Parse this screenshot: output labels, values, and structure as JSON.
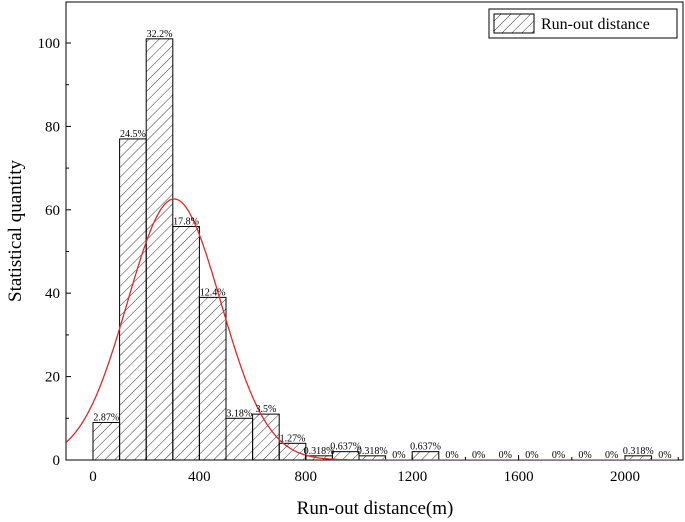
{
  "chart_data": {
    "type": "bar",
    "title": "",
    "xlabel": "Run-out distance(m)",
    "ylabel": "Statistical quantity",
    "xlim": [
      -100,
      2200
    ],
    "ylim": [
      0,
      110
    ],
    "bin_width": 100,
    "x_ticks": [
      0,
      400,
      800,
      1200,
      1600,
      2000
    ],
    "x_tick_labels": [
      "0",
      "400",
      "800",
      "1200",
      "1600",
      "2000"
    ],
    "y_ticks": [
      0,
      20,
      40,
      60,
      80,
      100
    ],
    "y_tick_labels": [
      "0",
      "20",
      "40",
      "60",
      "80",
      "100"
    ],
    "grid": false,
    "legend_position": "top-right",
    "legend_label": "Run-out distance",
    "series": [
      {
        "name": "Run-out distance",
        "bin_starts": [
          0,
          100,
          200,
          300,
          400,
          500,
          600,
          700,
          800,
          900,
          1000,
          1100,
          1200,
          1300,
          1400,
          1500,
          1600,
          1700,
          1800,
          1900,
          2000,
          2100
        ],
        "values": [
          9,
          77,
          101,
          56,
          39,
          10,
          11,
          4,
          1,
          2,
          1,
          0,
          2,
          0,
          0,
          0,
          0,
          0,
          0,
          0,
          1,
          0
        ],
        "labels": [
          "2.87%",
          "24.5%",
          "32.2%",
          "17.8%",
          "12.4%",
          "3.18%",
          "3.5%",
          "1.27%",
          "0.318%",
          "0.637%",
          "0.318%",
          "0%",
          "0.637%",
          "0%",
          "0%",
          "0%",
          "0%",
          "0%",
          "0%",
          "0%",
          "0.318%",
          "0%"
        ]
      }
    ],
    "fit_curve": {
      "type": "normal",
      "color": "#e8262a",
      "mean": 305,
      "peak": 62.6,
      "sigma": 175
    },
    "bar_fill": "hatched",
    "bar_edge_color": "#000000"
  }
}
